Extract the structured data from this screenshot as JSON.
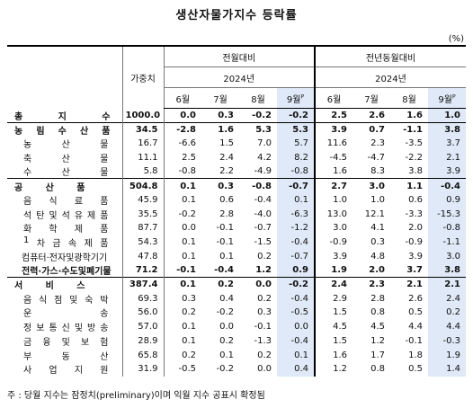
{
  "title": "생산자물가지수 등락률",
  "unit": "(%)",
  "header": {
    "weight_label": "가중치",
    "mom_label": "전월대비",
    "yoy_label": "전년동월대비",
    "year_label": "2024년",
    "months": [
      "6월",
      "7월",
      "8월",
      "9월"
    ],
    "prelim_mark": "P"
  },
  "rows": [
    {
      "name": "총 지 수",
      "weight": "1000.0",
      "mom": [
        "0.0",
        "0.3",
        "-0.2",
        "-0.2"
      ],
      "yoy": [
        "2.5",
        "2.6",
        "1.6",
        "1.0"
      ]
    },
    {
      "name": "농 림 수 산 품",
      "weight": "34.5",
      "mom": [
        "-2.8",
        "1.6",
        "5.3",
        "5.3"
      ],
      "yoy": [
        "3.9",
        "0.7",
        "-1.1",
        "3.8"
      ]
    },
    {
      "name": "농 산 물",
      "weight": "16.7",
      "mom": [
        "-6.6",
        "1.5",
        "7.0",
        "5.7"
      ],
      "yoy": [
        "11.6",
        "2.3",
        "-3.5",
        "3.7"
      ]
    },
    {
      "name": "축 산 물",
      "weight": "11.1",
      "mom": [
        "2.5",
        "2.4",
        "4.2",
        "8.2"
      ],
      "yoy": [
        "-4.5",
        "-4.7",
        "-2.2",
        "2.1"
      ]
    },
    {
      "name": "수 산 물",
      "weight": "5.8",
      "mom": [
        "-0.8",
        "2.2",
        "-4.9",
        "-0.8"
      ],
      "yoy": [
        "1.6",
        "8.3",
        "3.8",
        "3.9"
      ]
    },
    {
      "name": "공 산 품",
      "weight": "504.8",
      "mom": [
        "0.1",
        "0.3",
        "-0.8",
        "-0.7"
      ],
      "yoy": [
        "2.7",
        "3.0",
        "1.1",
        "-0.4"
      ]
    },
    {
      "name": "음 식 료 품",
      "weight": "45.9",
      "mom": [
        "0.1",
        "0.6",
        "-0.4",
        "0.1"
      ],
      "yoy": [
        "1.0",
        "1.0",
        "0.6",
        "0.9"
      ]
    },
    {
      "name": "석탄및석유제품",
      "weight": "35.5",
      "mom": [
        "-0.2",
        "2.8",
        "-4.0",
        "-6.3"
      ],
      "yoy": [
        "13.0",
        "12.1",
        "-3.3",
        "-15.3"
      ]
    },
    {
      "name": "화 학 제 품",
      "weight": "87.7",
      "mom": [
        "0.0",
        "-0.1",
        "-0.7",
        "-1.2"
      ],
      "yoy": [
        "3.0",
        "4.1",
        "2.0",
        "-0.8"
      ]
    },
    {
      "name": "1 차 금 속 제 품",
      "weight": "54.3",
      "mom": [
        "0.1",
        "-0.1",
        "-1.5",
        "-0.4"
      ],
      "yoy": [
        "-0.9",
        "0.3",
        "-0.9",
        "-1.1"
      ]
    },
    {
      "name": "컴퓨터·전자및광학기기",
      "weight": "47.8",
      "mom": [
        "0.1",
        "0.1",
        "0.2",
        "-0.7"
      ],
      "yoy": [
        "3.9",
        "4.8",
        "3.9",
        "3.0"
      ]
    },
    {
      "name": "전력·가스·수도및폐기물",
      "weight": "71.2",
      "mom": [
        "-0.1",
        "-0.4",
        "1.2",
        "0.9"
      ],
      "yoy": [
        "1.9",
        "2.0",
        "3.7",
        "3.8"
      ]
    },
    {
      "name": "서 비 스",
      "weight": "387.4",
      "mom": [
        "0.1",
        "0.2",
        "0.0",
        "-0.2"
      ],
      "yoy": [
        "2.4",
        "2.3",
        "2.1",
        "2.1"
      ]
    },
    {
      "name": "음식점및숙박",
      "weight": "69.3",
      "mom": [
        "0.3",
        "0.4",
        "0.2",
        "-0.4"
      ],
      "yoy": [
        "2.9",
        "2.8",
        "2.6",
        "2.4"
      ]
    },
    {
      "name": "운 송",
      "weight": "56.0",
      "mom": [
        "0.2",
        "-0.2",
        "0.3",
        "-0.5"
      ],
      "yoy": [
        "1.5",
        "0.8",
        "0.5",
        "0.2"
      ]
    },
    {
      "name": "정보통신및방송",
      "weight": "57.0",
      "mom": [
        "0.1",
        "0.0",
        "-0.1",
        "0.0"
      ],
      "yoy": [
        "4.5",
        "4.5",
        "4.4",
        "4.4"
      ]
    },
    {
      "name": "금 융 및 보 험",
      "weight": "28.9",
      "mom": [
        "0.1",
        "0.2",
        "-1.3",
        "-0.4"
      ],
      "yoy": [
        "1.5",
        "1.2",
        "-0.1",
        "-0.3"
      ]
    },
    {
      "name": "부 동 산",
      "weight": "65.8",
      "mom": [
        "0.2",
        "0.1",
        "0.2",
        "0.1"
      ],
      "yoy": [
        "1.6",
        "1.7",
        "1.8",
        "1.9"
      ]
    },
    {
      "name": "사 업 지 원",
      "weight": "31.9",
      "mom": [
        "-0.5",
        "-0.2",
        "0.0",
        "0.4"
      ],
      "yoy": [
        "1.2",
        "0.8",
        "0.5",
        "1.4"
      ]
    }
  ],
  "footnote": "주 : 당월 지수는 잠정치(preliminary)이며 익월 지수 공표시 확정됨"
}
